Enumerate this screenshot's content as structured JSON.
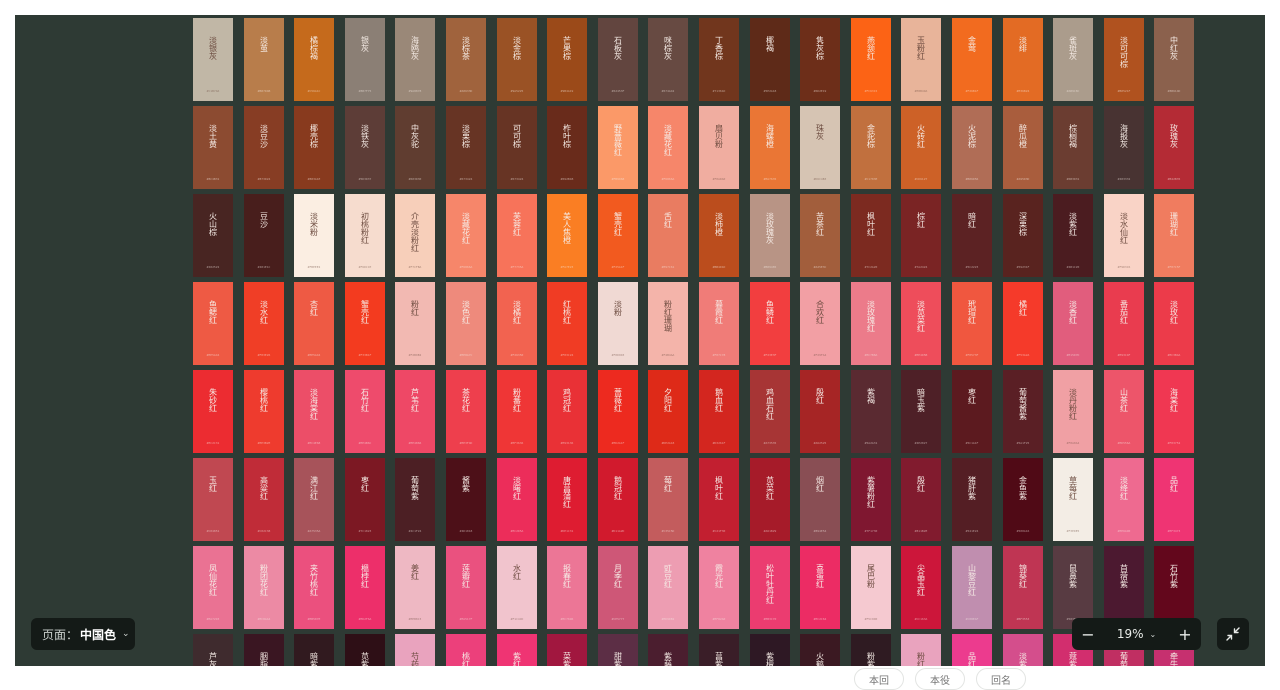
{
  "colors": {
    "canvas_bg": "#2e3a34",
    "toolbar_bg": "#141a17",
    "text_light": "#ffffff"
  },
  "page_selector": {
    "label": "页面：",
    "value": "中国色",
    "chevron_icon": "chevron-down-icon"
  },
  "zoom": {
    "minus_icon": "minus-icon",
    "value": "19%",
    "chevron_icon": "chevron-down-icon",
    "plus_icon": "plus-icon"
  },
  "fit_button": {
    "icon": "collapse-arrows-icon"
  },
  "below_pills": [
    "本回",
    "本役",
    "回名"
  ],
  "swatch_rows": [
    [
      {
        "name": "淡银灰",
        "color": "#c1b7a6"
      },
      {
        "name": "淡茧",
        "color": "#b87d4b"
      },
      {
        "name": "橘棕褐",
        "color": "#c56a1c"
      },
      {
        "name": "银灰",
        "color": "#8b7f75"
      },
      {
        "name": "海鸥灰",
        "color": "#9a8878"
      },
      {
        "name": "淡棕茶",
        "color": "#a0633d"
      },
      {
        "name": "淡金棕",
        "color": "#9a5225"
      },
      {
        "name": "芒果棕",
        "color": "#9b4a19"
      },
      {
        "name": "石板灰",
        "color": "#62453f"
      },
      {
        "name": "咪棕灰",
        "color": "#674a42"
      },
      {
        "name": "丁香棕",
        "color": "#71361d"
      },
      {
        "name": "椰褐",
        "color": "#5e2a18"
      },
      {
        "name": "隽灰棕",
        "color": "#6d2e19"
      },
      {
        "name": "燕颔红",
        "color": "#fc6315"
      },
      {
        "name": "玉粉红",
        "color": "#e8b49a"
      },
      {
        "name": "金莺",
        "color": "#f26b1f"
      },
      {
        "name": "淡绯",
        "color": "#e36b24"
      },
      {
        "name": "雀斑灰",
        "color": "#ab9c8c"
      },
      {
        "name": "淡可可棕",
        "color": "#b0521f"
      },
      {
        "name": "中红灰",
        "color": "#8b614d"
      }
    ],
    [
      {
        "name": "淡土黄",
        "color": "#8c4b31"
      },
      {
        "name": "淡豆沙",
        "color": "#873d24"
      },
      {
        "name": "椰壳棕",
        "color": "#883a1e"
      },
      {
        "name": "淡铁灰",
        "color": "#5d3d37"
      },
      {
        "name": "中灰驼",
        "color": "#603d30"
      },
      {
        "name": "淡栗棕",
        "color": "#673424"
      },
      {
        "name": "可可棕",
        "color": "#673424"
      },
      {
        "name": "柞叶棕",
        "color": "#692b1b"
      },
      {
        "name": "野蔷薇红",
        "color": "#fb9968"
      },
      {
        "name": "淡藏花红",
        "color": "#f6866a"
      },
      {
        "name": "扇贝粉",
        "color": "#f0ada0"
      },
      {
        "name": "海螺橙",
        "color": "#ea7635"
      },
      {
        "name": "珠灰",
        "color": "#d6c4b3"
      },
      {
        "name": "金驼棕",
        "color": "#c1703e"
      },
      {
        "name": "火砖红",
        "color": "#cd6127"
      },
      {
        "name": "火泥棕",
        "color": "#b06d56"
      },
      {
        "name": "醉瓜橙",
        "color": "#a95d3d"
      },
      {
        "name": "棕榈褐",
        "color": "#6b3d31"
      },
      {
        "name": "海报灰",
        "color": "#483332"
      },
      {
        "name": "玫瑰灰",
        "color": "#b42b35"
      }
    ],
    [
      {
        "name": "火山棕",
        "color": "#482522"
      },
      {
        "name": "豆沙",
        "color": "#481e1c"
      },
      {
        "name": "淡米粉",
        "color": "#fbeee2"
      },
      {
        "name": "初桃粉红",
        "color": "#f6dcce"
      },
      {
        "name": "介壳淡粉红",
        "color": "#f7cfba"
      },
      {
        "name": "淡藏花红",
        "color": "#f6866a"
      },
      {
        "name": "芙蓉红",
        "color": "#f7735a"
      },
      {
        "name": "美人焦橙",
        "color": "#fa7e23"
      },
      {
        "name": "蟹壳红",
        "color": "#f25a1f"
      },
      {
        "name": "舌红",
        "color": "#e97c61"
      },
      {
        "name": "淡柿橙",
        "color": "#bb4d1d"
      },
      {
        "name": "淡玫瑰灰",
        "color": "#b89485"
      },
      {
        "name": "苦茶红",
        "color": "#a25e3c"
      },
      {
        "name": "枫叶红",
        "color": "#7c2a20"
      },
      {
        "name": "棕红",
        "color": "#7a2424"
      },
      {
        "name": "暗红",
        "color": "#5c2223"
      },
      {
        "name": "深栗棕",
        "color": "#59231f"
      },
      {
        "name": "淡紫红",
        "color": "#4b1c20"
      },
      {
        "name": "淡水仙红",
        "color": "#f9d3c6"
      },
      {
        "name": "珊瑚红",
        "color": "#f07c5f"
      }
    ],
    [
      {
        "name": "鱼鳃红",
        "color": "#ee5a44"
      },
      {
        "name": "淡水红",
        "color": "#f03e26"
      },
      {
        "name": "杏红",
        "color": "#ee5a44"
      },
      {
        "name": "蟹壳红",
        "color": "#f33b1f"
      },
      {
        "name": "粉红",
        "color": "#f2b9b2"
      },
      {
        "name": "淡色红",
        "color": "#ee8a7c"
      },
      {
        "name": "淡橘红",
        "color": "#f26350"
      },
      {
        "name": "红桃红",
        "color": "#f03c24"
      },
      {
        "name": "淡粉",
        "color": "#f0d9d3"
      },
      {
        "name": "粉红珊瑚",
        "color": "#f4b4aa"
      },
      {
        "name": "暮霞红",
        "color": "#f07c78"
      },
      {
        "name": "鱼鳞红",
        "color": "#f23e3f"
      },
      {
        "name": "合欢红",
        "color": "#f29fa4"
      },
      {
        "name": "淡玫瑰红",
        "color": "#ec7b8a"
      },
      {
        "name": "淡苋菜红",
        "color": "#ee4d5b"
      },
      {
        "name": "玳瑁红",
        "color": "#f0573f"
      },
      {
        "name": "橘红",
        "color": "#f53a2a"
      },
      {
        "name": "淡香红",
        "color": "#e15d7d"
      },
      {
        "name": "番茄红",
        "color": "#e93c4f"
      },
      {
        "name": "淡玫红",
        "color": "#ec3b4a"
      }
    ],
    [
      {
        "name": "朱砂红",
        "color": "#ec2c31"
      },
      {
        "name": "樱桃红",
        "color": "#ee3b2e"
      },
      {
        "name": "淡海棠红",
        "color": "#ec4e68"
      },
      {
        "name": "石竹红",
        "color": "#ee4b6c"
      },
      {
        "name": "芦苇红",
        "color": "#ee4866"
      },
      {
        "name": "茶花红",
        "color": "#ee3f4d"
      },
      {
        "name": "粉蕃红",
        "color": "#ef3636"
      },
      {
        "name": "鸡冠红",
        "color": "#e93136"
      },
      {
        "name": "蔷薇红",
        "color": "#ed2a1f"
      },
      {
        "name": "夕阳红",
        "color": "#de2a18"
      },
      {
        "name": "鹅血红",
        "color": "#d3261f"
      },
      {
        "name": "鸡血石红",
        "color": "#a73535"
      },
      {
        "name": "殷红",
        "color": "#a62525"
      },
      {
        "name": "紫褐",
        "color": "#5a2a31"
      },
      {
        "name": "暗玉紫",
        "color": "#4e2027"
      },
      {
        "name": "枣红",
        "color": "#5c1a1f"
      },
      {
        "name": "葡萄酱紫",
        "color": "#5a1f25"
      },
      {
        "name": "淡丹粉红",
        "color": "#f0a0a4"
      },
      {
        "name": "山茶红",
        "color": "#ed556a"
      },
      {
        "name": "海棠红",
        "color": "#f03752"
      }
    ],
    [
      {
        "name": "玉红",
        "color": "#c04851"
      },
      {
        "name": "高粱红",
        "color": "#c02c38"
      },
      {
        "name": "满江红",
        "color": "#a7535a"
      },
      {
        "name": "枣红",
        "color": "#7c1823"
      },
      {
        "name": "葡萄紫",
        "color": "#4c1f24"
      },
      {
        "name": "酱紫",
        "color": "#4d1018"
      },
      {
        "name": "淡曙红",
        "color": "#ec2d5a"
      },
      {
        "name": "唐菖蒲红",
        "color": "#de1c31"
      },
      {
        "name": "鹅冠红",
        "color": "#d11a2d"
      },
      {
        "name": "莓红",
        "color": "#c35c5d"
      },
      {
        "name": "枫叶红",
        "color": "#c21f30"
      },
      {
        "name": "苋菜红",
        "color": "#a61b29"
      },
      {
        "name": "烟红",
        "color": "#894e54"
      },
      {
        "name": "紫薯粉红",
        "color": "#7f1730"
      },
      {
        "name": "殷红",
        "color": "#811b2e"
      },
      {
        "name": "猪肝紫",
        "color": "#541e24"
      },
      {
        "name": "金鱼紫",
        "color": "#500a16"
      },
      {
        "name": "草莓红",
        "color": "#f3ede5"
      },
      {
        "name": "淡绛红",
        "color": "#ee6a90"
      },
      {
        "name": "品红",
        "color": "#ef3473"
      }
    ],
    [
      {
        "name": "凤仙花红",
        "color": "#ea7293"
      },
      {
        "name": "粉团花红",
        "color": "#ec8aa4"
      },
      {
        "name": "夹竹桃红",
        "color": "#eb507e"
      },
      {
        "name": "榲桲红",
        "color": "#ed2f6a"
      },
      {
        "name": "姜红",
        "color": "#eeb8c3"
      },
      {
        "name": "莲瓣红",
        "color": "#ea517f"
      },
      {
        "name": "水红",
        "color": "#f1c4cd"
      },
      {
        "name": "报春红",
        "color": "#ec7696"
      },
      {
        "name": "月季红",
        "color": "#ce5777"
      },
      {
        "name": "豇豆红",
        "color": "#ed9db2"
      },
      {
        "name": "霞光红",
        "color": "#ef82a0"
      },
      {
        "name": "松叶牡丹红",
        "color": "#eb3c70"
      },
      {
        "name": "喜蛋红",
        "color": "#ec2c64"
      },
      {
        "name": "尾巴粉",
        "color": "#f5c9d0"
      },
      {
        "name": "尖晶玉红",
        "color": "#cc163a"
      },
      {
        "name": "山黎豆红",
        "color": "#c08eaf"
      },
      {
        "name": "锦葵红",
        "color": "#bf3553"
      },
      {
        "name": "鼠鼻紫",
        "color": "#583b42"
      },
      {
        "name": "苜蓿紫",
        "color": "#4c1930"
      },
      {
        "name": "石竹紫",
        "color": "#63071c"
      }
    ],
    [
      {
        "name": "芦灰",
        "color": "#3f2b2e"
      },
      {
        "name": "胭脂",
        "color": "#3a1622"
      },
      {
        "name": "暗紫",
        "color": "#311a1f"
      },
      {
        "name": "苋紫",
        "color": "#2e0f16"
      },
      {
        "name": "芍药红",
        "color": "#e9a3be"
      },
      {
        "name": "桃红",
        "color": "#ec407b"
      },
      {
        "name": "紫红",
        "color": "#ef3473"
      },
      {
        "name": "菜紫",
        "color": "#a1173f"
      },
      {
        "name": "甜紫",
        "color": "#5c2e45"
      },
      {
        "name": "紫藤紫",
        "color": "#4b1e2f"
      },
      {
        "name": "菖紫",
        "color": "#3a1e28"
      },
      {
        "name": "紫檀",
        "color": "#2e1824"
      },
      {
        "name": "火鹤紫",
        "color": "#3b1922"
      },
      {
        "name": "粉紫",
        "color": "#2f1b22"
      },
      {
        "name": "粉红",
        "color": "#e9a3be"
      },
      {
        "name": "品红",
        "color": "#ec3b8e"
      },
      {
        "name": "淡紫",
        "color": "#d44e8c"
      },
      {
        "name": "蔻紫",
        "color": "#d22e6e"
      },
      {
        "name": "葡萄紫",
        "color": "#c02f62"
      },
      {
        "name": "牵牛紫",
        "color": "#c6306f"
      }
    ]
  ]
}
